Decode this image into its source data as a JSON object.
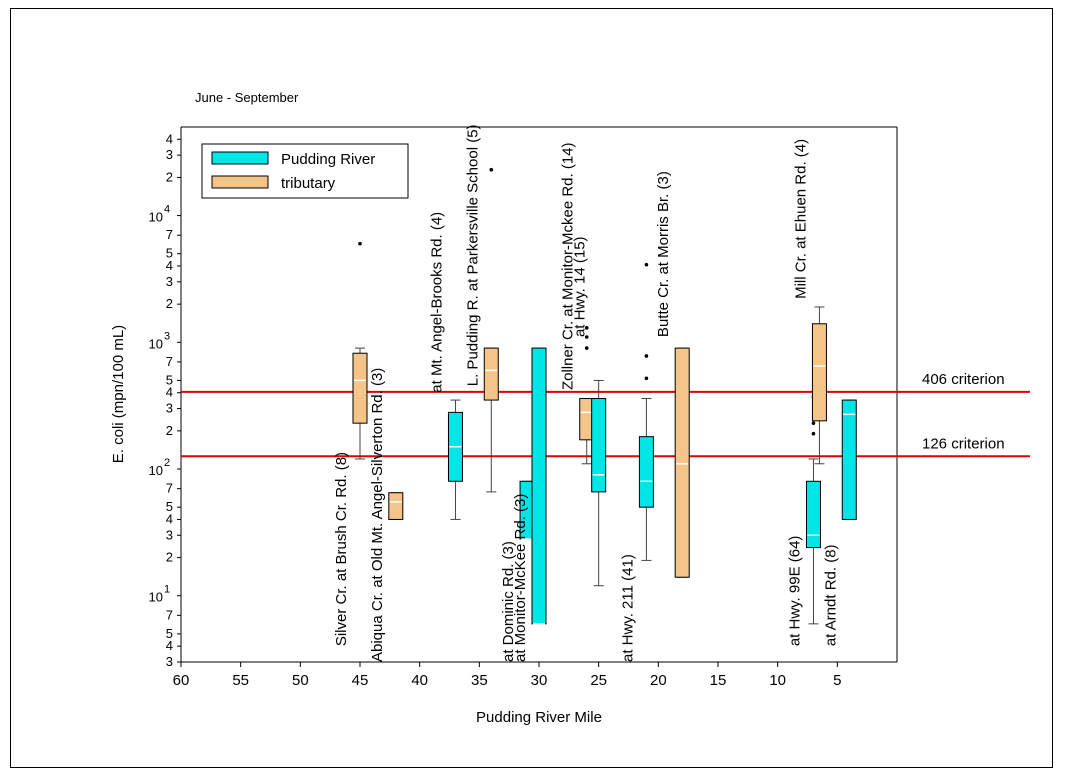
{
  "chart_data": {
    "type": "box",
    "subtitle": "June - September",
    "xlabel": "Pudding River Mile",
    "ylabel": "E. coli (mpn/100 mL)",
    "xlim": [
      60,
      0
    ],
    "ylim": [
      3,
      50000
    ],
    "y_scale": "log",
    "x_ticks": [
      60,
      55,
      50,
      45,
      40,
      35,
      30,
      25,
      20,
      15,
      10,
      5
    ],
    "y_tick_labels": [
      {
        "v": 3,
        "t": "3"
      },
      {
        "v": 4,
        "t": "4"
      },
      {
        "v": 5,
        "t": "5"
      },
      {
        "v": 7,
        "t": "7"
      },
      {
        "v": 10,
        "t": "10",
        "sup": "1"
      },
      {
        "v": 20,
        "t": "2"
      },
      {
        "v": 30,
        "t": "3"
      },
      {
        "v": 40,
        "t": "4"
      },
      {
        "v": 50,
        "t": "5"
      },
      {
        "v": 70,
        "t": "7"
      },
      {
        "v": 100,
        "t": "10",
        "sup": "2"
      },
      {
        "v": 200,
        "t": "2"
      },
      {
        "v": 300,
        "t": "3"
      },
      {
        "v": 400,
        "t": "4"
      },
      {
        "v": 500,
        "t": "5"
      },
      {
        "v": 700,
        "t": "7"
      },
      {
        "v": 1000,
        "t": "10",
        "sup": "3"
      },
      {
        "v": 2000,
        "t": "2"
      },
      {
        "v": 3000,
        "t": "3"
      },
      {
        "v": 4000,
        "t": "4"
      },
      {
        "v": 5000,
        "t": "5"
      },
      {
        "v": 7000,
        "t": "7"
      },
      {
        "v": 10000,
        "t": "10",
        "sup": "4"
      },
      {
        "v": 20000,
        "t": "2"
      },
      {
        "v": 30000,
        "t": "3"
      },
      {
        "v": 40000,
        "t": "4"
      }
    ],
    "legend": [
      {
        "name": "Pudding River",
        "color": "#00e5e5"
      },
      {
        "name": "tributary",
        "color": "#f5c489"
      }
    ],
    "reference_lines": [
      {
        "value": 406,
        "label": "406 criterion",
        "color": "#e00000"
      },
      {
        "value": 126,
        "label": "126 criterion",
        "color": "#e00000"
      }
    ],
    "boxes": [
      {
        "label": "Silver Cr. at Brush Cr. Rd. (8)",
        "group": "tributary",
        "x": 45,
        "whisker_low": 120,
        "q1": 230,
        "median": 500,
        "q3": 820,
        "whisker_high": 900,
        "outliers": [
          6000
        ],
        "label_anchor": 4
      },
      {
        "label": "Abiqua Cr. at Old Mt. Angel-Silverton Rd. (3)",
        "group": "tributary",
        "x": 42,
        "whisker_low": 40,
        "q1": 40,
        "median": 55,
        "q3": 65,
        "whisker_high": 65,
        "outliers": [],
        "label_anchor": 3
      },
      {
        "label": "at Mt. Angel-Brooks Rd. (4)",
        "group": "Pudding River",
        "x": 37,
        "whisker_low": 40,
        "q1": 80,
        "median": 150,
        "q3": 280,
        "whisker_high": 350,
        "outliers": [],
        "label_anchor": 400
      },
      {
        "label": "L. Pudding R. at Parkersville School (5)",
        "group": "tributary",
        "x": 34,
        "whisker_low": 66,
        "q1": 350,
        "median": 600,
        "q3": 900,
        "whisker_high": 900,
        "outliers": [
          23000
        ],
        "label_anchor": 450
      },
      {
        "label": "at Dominic Rd. (3)",
        "group": "Pudding River",
        "x": 31,
        "whisker_low": 28,
        "q1": 28,
        "median": 28,
        "q3": 80,
        "whisker_high": 80,
        "outliers": [],
        "label_anchor": 3
      },
      {
        "label": "at Monitor-McKee Rd. (3)",
        "group": "Pudding River",
        "x": 30,
        "whisker_low": 6,
        "q1": 6,
        "median": 6,
        "q3": 900,
        "whisker_high": 900,
        "outliers": [],
        "label_anchor": 3
      },
      {
        "label": "Zollner Cr. at Monitor-Mckee Rd. (14)",
        "group": "tributary",
        "x": 26,
        "whisker_low": 110,
        "q1": 170,
        "median": 280,
        "q3": 360,
        "whisker_high": 360,
        "outliers": [
          900,
          1100,
          1300
        ],
        "label_anchor": 420
      },
      {
        "label": "at Hwy. 14 (15)",
        "group": "Pudding River",
        "x": 25,
        "whisker_low": 12,
        "q1": 66,
        "median": 90,
        "q3": 360,
        "whisker_high": 500,
        "outliers": [],
        "label_anchor": 1100
      },
      {
        "label": "at Hwy. 211 (41)",
        "group": "Pudding River",
        "x": 21,
        "whisker_low": 19,
        "q1": 50,
        "median": 80,
        "q3": 180,
        "whisker_high": 360,
        "outliers": [
          520,
          780,
          4100
        ],
        "label_anchor": 3
      },
      {
        "label": "Butte Cr. at Morris Br. (3)",
        "group": "tributary",
        "x": 18,
        "whisker_low": 14,
        "q1": 14,
        "median": 110,
        "q3": 900,
        "whisker_high": 900,
        "outliers": [],
        "label_anchor": 1100
      },
      {
        "label": "at Hwy. 99E (64)",
        "group": "Pudding River",
        "x": 7,
        "whisker_low": 6,
        "q1": 24,
        "median": 30,
        "q3": 80,
        "whisker_high": 120,
        "outliers": [
          190,
          230,
          370
        ],
        "label_anchor": 4
      },
      {
        "label": "Mill Cr. at Ehuen Rd. (4)",
        "group": "tributary",
        "x": 6.5,
        "whisker_low": 110,
        "q1": 240,
        "median": 650,
        "q3": 1400,
        "whisker_high": 1900,
        "outliers": [],
        "label_anchor": 2200
      },
      {
        "label": "at Arndt Rd. (8)",
        "group": "Pudding River",
        "x": 4,
        "whisker_low": 40,
        "q1": 40,
        "median": 270,
        "q3": 350,
        "whisker_high": 350,
        "outliers": [],
        "label_anchor": 4
      }
    ]
  }
}
